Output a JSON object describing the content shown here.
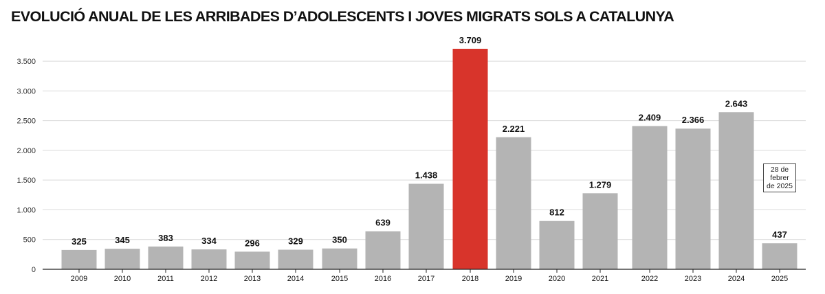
{
  "chart_data": {
    "type": "bar",
    "title": "EVOLUCIÓ ANUAL DE LES ARRIBADES D’ADOLESCENTS I JOVES MIGRATS SOLS A CATALUNYA",
    "categories": [
      "2009",
      "2010",
      "2011",
      "2012",
      "2013",
      "2014",
      "2015",
      "2016",
      "2017",
      "2018",
      "2019",
      "2020",
      "2021",
      "2022",
      "2023",
      "2024",
      "2025"
    ],
    "values": [
      325,
      345,
      383,
      334,
      296,
      329,
      350,
      639,
      1438,
      3709,
      2221,
      812,
      1279,
      2409,
      2366,
      2643,
      437
    ],
    "value_labels": [
      "325",
      "345",
      "383",
      "334",
      "296",
      "329",
      "350",
      "639",
      "1.438",
      "3.709",
      "2.221",
      "812",
      "1.279",
      "2.409",
      "2.366",
      "2.643",
      "437"
    ],
    "yticks": [
      0,
      500,
      1000,
      1500,
      2000,
      2500,
      3000,
      3500
    ],
    "ytick_labels": [
      "0",
      "500",
      "1.000",
      "1.500",
      "2.000",
      "2.500",
      "3.000",
      "3.500"
    ],
    "ylim": [
      0,
      3709
    ],
    "grid": true,
    "highlight_index": 9,
    "colors": {
      "bar": "#b4b4b4",
      "highlight": "#d8342b",
      "grid": "#d9d9d9",
      "axis": "#222222",
      "text": "#111111"
    },
    "annotation": {
      "category": "2025",
      "text": "28 de febrer de 2025"
    },
    "xlabel": "",
    "ylabel": ""
  }
}
